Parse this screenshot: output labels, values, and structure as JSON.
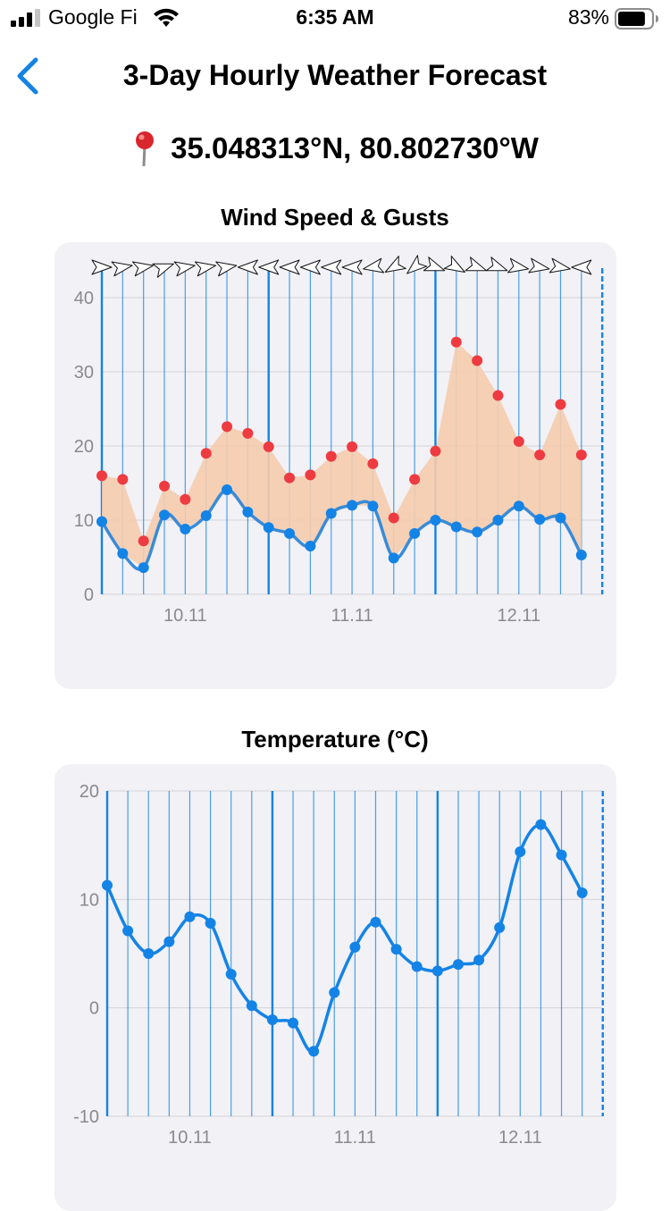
{
  "status_bar": {
    "carrier": "Google Fi",
    "time": "6:35 AM",
    "battery": "83%",
    "battery_level": 0.83
  },
  "nav": {
    "title": "3-Day Hourly Weather Forecast"
  },
  "location": {
    "coordinates": "35.048313°N, 80.802730°W"
  },
  "colors": {
    "accent": "#1483e6",
    "gust": "#ee3b41",
    "gust_fill": "#f5ccae",
    "grid": "#d3d3d8",
    "axis_text": "#8a8a8e"
  },
  "chart_data": [
    {
      "type": "line",
      "title": "Wind Speed & Gusts",
      "x": [
        0,
        3,
        6,
        9,
        12,
        15,
        18,
        21,
        24,
        27,
        30,
        33,
        36,
        39,
        42,
        45,
        48,
        51,
        54,
        57,
        60,
        63,
        66,
        69
      ],
      "x_ticks": [
        "10.11",
        "11.11",
        "12.11"
      ],
      "x_tick_positions": [
        12,
        36,
        60
      ],
      "day_boundaries": [
        0,
        24,
        48,
        72
      ],
      "ylim": [
        0,
        45
      ],
      "y_ticks": [
        0,
        10,
        20,
        30,
        40
      ],
      "series": [
        {
          "name": "Wind speed",
          "values": [
            9.8,
            5.5,
            3.6,
            10.7,
            8.8,
            10.6,
            14.1,
            11.1,
            9.0,
            8.2,
            6.5,
            10.9,
            12.0,
            11.9,
            4.9,
            8.2,
            10.0,
            9.1,
            8.4,
            10.0,
            11.9,
            10.1,
            10.3,
            5.3
          ]
        },
        {
          "name": "Wind gusts",
          "values": [
            16.0,
            15.5,
            7.2,
            14.6,
            12.8,
            19.0,
            22.6,
            21.7,
            19.9,
            15.7,
            16.1,
            18.6,
            19.9,
            17.6,
            10.3,
            15.5,
            19.3,
            34.0,
            31.5,
            26.8,
            20.6,
            18.8,
            25.6,
            18.8
          ]
        }
      ],
      "wind_direction_deg": [
        90,
        80,
        80,
        70,
        80,
        80,
        80,
        270,
        270,
        270,
        270,
        270,
        270,
        260,
        240,
        230,
        110,
        120,
        110,
        110,
        100,
        100,
        100,
        270
      ]
    },
    {
      "type": "line",
      "title": "Temperature (°C)",
      "x": [
        0,
        3,
        6,
        9,
        12,
        15,
        18,
        21,
        24,
        27,
        30,
        33,
        36,
        39,
        42,
        45,
        48,
        51,
        54,
        57,
        60,
        63,
        66,
        69
      ],
      "x_ticks": [
        "10.11",
        "11.11",
        "12.11"
      ],
      "x_tick_positions": [
        12,
        36,
        60
      ],
      "day_boundaries": [
        0,
        24,
        48,
        72
      ],
      "ylim": [
        -10,
        20
      ],
      "y_ticks": [
        -10,
        0,
        10,
        20
      ],
      "series": [
        {
          "name": "Temperature",
          "values": [
            11.3,
            7.1,
            5.0,
            6.1,
            8.4,
            7.8,
            3.1,
            0.2,
            -1.1,
            -1.4,
            -4.0,
            1.4,
            5.6,
            7.9,
            5.4,
            3.8,
            3.4,
            4.0,
            4.4,
            7.4,
            14.4,
            16.9,
            14.1,
            10.6
          ]
        }
      ]
    }
  ]
}
